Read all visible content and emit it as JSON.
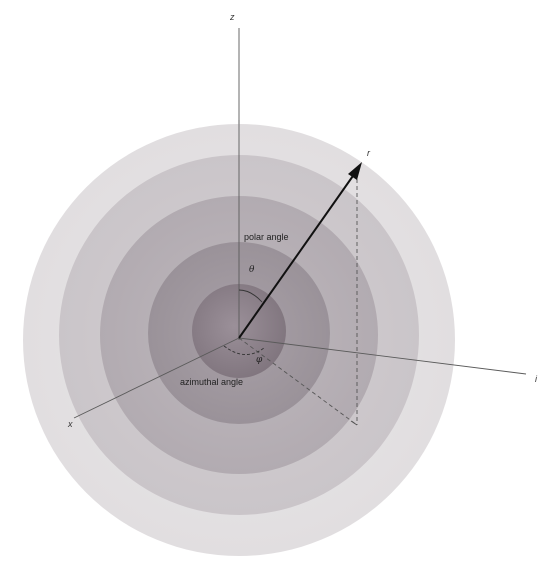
{
  "labels": {
    "z_axis": "z",
    "x_axis": "x",
    "y_axis": "i",
    "r_vector": "r",
    "polar_angle": "polar angle",
    "theta": "θ",
    "azimuthal_angle": "azimuthal angle",
    "phi": "φ"
  },
  "colors": {
    "shell_1": "#e6e4e5",
    "shell_2": "#d0cccf",
    "shell_3": "#b9b3b8",
    "shell_4": "#a199a0",
    "core": "#8d828b",
    "axis_line": "#6a6a6a",
    "vector": "#111111",
    "dashed": "#555555"
  }
}
